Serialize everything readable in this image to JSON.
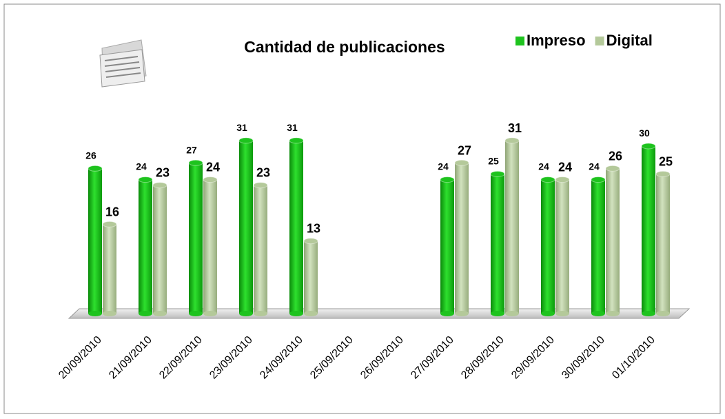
{
  "chart_data": {
    "type": "bar",
    "title": "Cantidad de publicaciones",
    "categories": [
      "20/09/2010",
      "21/09/2010",
      "22/09/2010",
      "23/09/2010",
      "24/09/2010",
      "25/09/2010",
      "26/09/2010",
      "27/09/2010",
      "28/09/2010",
      "29/09/2010",
      "30/09/2010",
      "01/10/2010"
    ],
    "series": [
      {
        "name": "Impreso",
        "color": "#1ec31e",
        "values": [
          26,
          24,
          27,
          31,
          31,
          null,
          null,
          24,
          25,
          24,
          24,
          30
        ]
      },
      {
        "name": "Digital",
        "color": "#b4c99a",
        "values": [
          16,
          23,
          24,
          23,
          13,
          null,
          null,
          27,
          31,
          24,
          26,
          25
        ]
      }
    ],
    "legend": "top-right"
  }
}
